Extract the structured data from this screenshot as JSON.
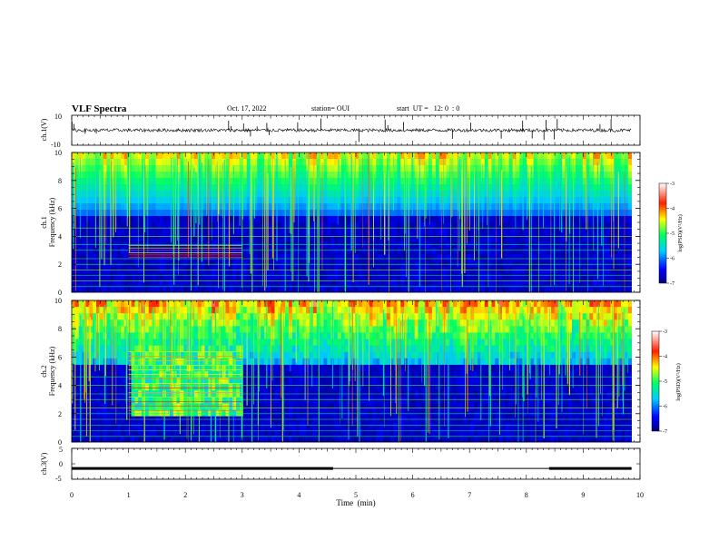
{
  "header": {
    "title": "VLF Spectra",
    "date": "Oct. 17, 2022",
    "station": "station= OUI",
    "start_ut": "start  UT =   12: 0  : 0"
  },
  "chart_data": {
    "type": "heatmap",
    "title": "VLF Spectra",
    "xlabel": "Time  (min)",
    "xlim": [
      0,
      10
    ],
    "x_ticks": [
      "0",
      "1",
      "2",
      "3",
      "4",
      "5",
      "6",
      "7",
      "8",
      "9",
      "10"
    ],
    "data_end_min": 9.85,
    "panels": [
      {
        "name": "ch1-waveform",
        "type": "line",
        "ylabel": "ch.1(V)",
        "ylim": [
          -10,
          10
        ],
        "y_ticks": [
          "10",
          "-10"
        ],
        "baseline": 0
      },
      {
        "name": "ch1-spectrogram",
        "type": "heatmap",
        "ylabel": "ch.1  Frequency  (kHz)",
        "ylabel_line1": "ch.1",
        "ylabel_line2": "Frequency  (kHz)",
        "ylim": [
          0,
          10
        ],
        "y_ticks": [
          "0",
          "2",
          "4",
          "6",
          "8",
          "10"
        ],
        "colorbar": {
          "label": "log(PSD)(V²/Hz)",
          "range": [
            -7,
            -3
          ],
          "ticks": [
            "-3",
            "-4",
            "-5",
            "-6",
            "-7"
          ]
        }
      },
      {
        "name": "ch2-spectrogram",
        "type": "heatmap",
        "ylabel": "ch.2  Frequency  (kHz)",
        "ylabel_line1": "ch.2",
        "ylabel_line2": "Frequency  (kHz)",
        "ylim": [
          0,
          10
        ],
        "y_ticks": [
          "0",
          "2",
          "4",
          "6",
          "8",
          "10"
        ],
        "colorbar": {
          "label": "log(PSD)(V²/Hz)",
          "range": [
            -7,
            -3
          ],
          "ticks": [
            "-3",
            "-4",
            "-5",
            "-6",
            "-7"
          ]
        }
      },
      {
        "name": "ch3-waveform",
        "type": "line",
        "ylabel": "ch.3(V)",
        "ylim": [
          -5,
          5
        ],
        "y_ticks": [
          "5",
          "0",
          "-5"
        ],
        "trace_level": -1.5,
        "thick_segments": [
          [
            0,
            4.6
          ],
          [
            8.4,
            9.85
          ]
        ]
      }
    ],
    "colors": {
      "colormap": [
        "#00007f",
        "#0000ff",
        "#00ffff",
        "#00ff00",
        "#ffff00",
        "#ff0000",
        "#ffffff"
      ],
      "background_low": "#000040"
    }
  }
}
